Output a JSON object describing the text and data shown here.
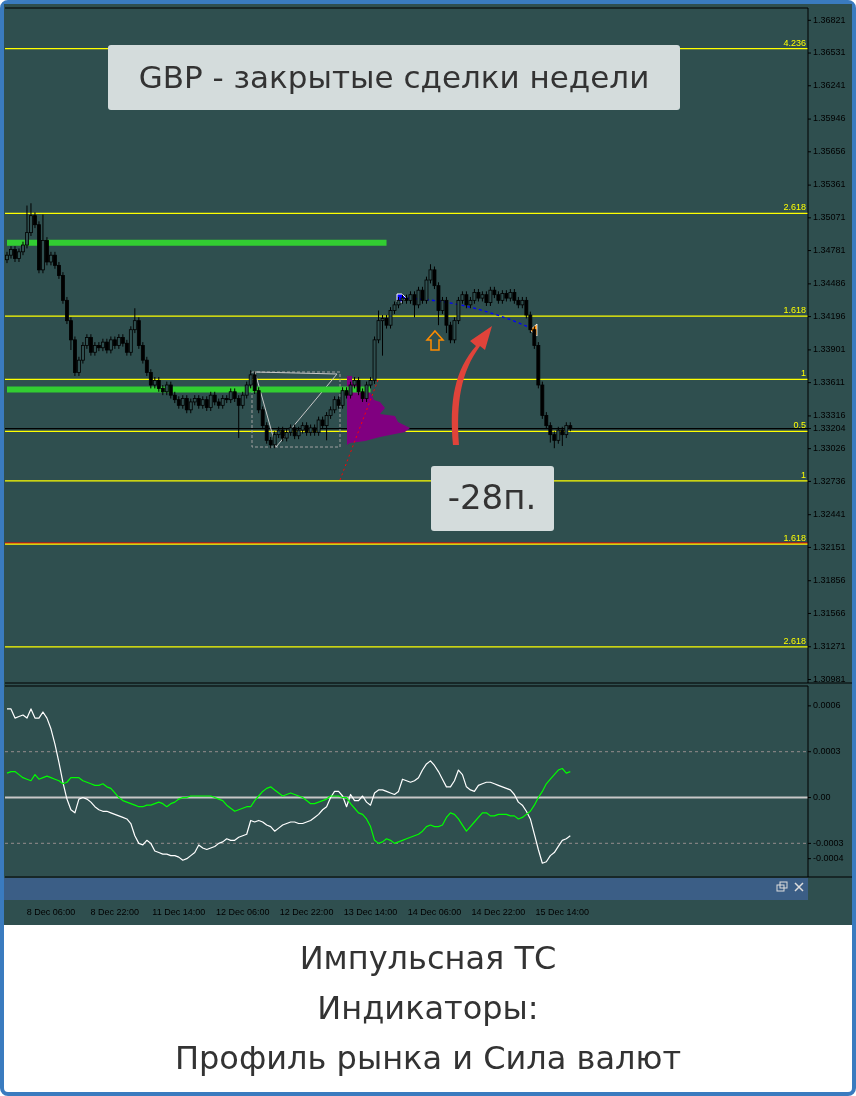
{
  "chart_data": [
    {
      "type": "candlestick",
      "title": "GBP - закрытые сделки недели",
      "annotations": [
        "-28п.",
        {
          "text": "4.236",
          "y": 1.3657
        },
        {
          "text": "2.618",
          "y": 1.3511
        },
        {
          "text": "1.618",
          "y": 1.342
        },
        {
          "text": "1",
          "y": 1.3364
        },
        {
          "text": "0.5",
          "y": 1.3318
        },
        {
          "text": "1",
          "y": 1.3274
        },
        {
          "text": "1.618",
          "y": 1.3218
        },
        {
          "text": "2.618",
          "y": 1.3127
        }
      ],
      "categories": [
        null,
        null,
        null,
        null,
        null,
        null,
        null,
        null,
        null,
        null,
        null,
        null,
        null,
        null,
        null,
        null,
        null,
        null,
        null,
        null,
        null,
        null,
        null,
        null,
        null,
        null,
        null,
        null,
        null,
        null,
        null,
        null,
        null,
        null,
        null,
        null,
        null,
        null,
        null,
        null,
        null,
        null,
        null,
        null,
        null,
        null,
        null,
        null,
        null,
        null,
        null,
        null,
        null,
        null,
        null,
        null,
        null,
        null,
        null,
        null,
        null,
        null,
        null,
        null,
        null,
        null,
        null,
        null,
        null,
        null,
        null,
        null,
        null,
        null,
        null,
        null,
        null,
        null,
        null,
        null,
        null,
        null,
        null,
        null,
        null,
        null,
        null,
        null,
        null,
        null,
        null,
        null,
        null,
        null,
        null,
        null,
        null,
        null,
        null,
        null,
        null,
        null,
        null,
        null,
        null,
        null,
        null,
        null,
        null,
        null,
        null,
        null,
        null,
        null,
        null,
        null,
        null,
        null,
        null,
        null,
        null,
        null,
        null,
        null,
        null,
        null,
        null,
        null,
        null,
        null,
        null,
        null,
        null,
        null,
        null,
        null,
        null,
        null,
        null,
        null,
        null,
        null,
        null,
        null,
        null,
        null,
        null,
        null,
        null,
        null,
        null,
        null,
        null,
        null,
        null,
        null,
        null,
        null,
        null,
        null,
        null,
        null,
        null,
        null,
        null,
        null,
        null,
        null,
        null,
        null,
        null,
        null,
        null,
        null,
        null,
        null,
        null,
        null,
        null,
        null,
        null,
        null,
        null,
        null,
        null,
        null,
        null,
        null,
        null,
        null,
        null,
        null,
        null,
        null,
        null,
        null,
        null,
        null,
        null,
        null,
        null
      ],
      "ylim": [
        1.3095,
        1.3693
      ],
      "yticks": [
        1.36821,
        1.36531,
        1.36241,
        1.35946,
        1.35656,
        1.35361,
        1.35071,
        1.34781,
        1.34486,
        1.34196,
        1.33901,
        1.33611,
        1.33316,
        1.33204,
        1.33026,
        1.32736,
        1.32441,
        1.32151,
        1.31856,
        1.31566,
        1.31271,
        1.30981
      ],
      "ref_lines": [
        {
          "axis": "y",
          "value": 1.3657,
          "color": "#ffff00"
        },
        {
          "axis": "y",
          "value": 1.3511,
          "color": "#ffff00"
        },
        {
          "axis": "y",
          "value": 1.342,
          "color": "#ffff00"
        },
        {
          "axis": "y",
          "value": 1.3364,
          "color": "#ffff00"
        },
        {
          "axis": "y",
          "value": 1.3318,
          "color": "#ffff00"
        },
        {
          "axis": "y",
          "value": 1.3274,
          "color": "#ffff00"
        },
        {
          "axis": "y",
          "value": 1.3219,
          "color": "#ff0000"
        },
        {
          "axis": "y",
          "value": 1.3218,
          "color": "#ffff00"
        },
        {
          "axis": "y",
          "value": 1.3127,
          "color": "#ffff00"
        },
        {
          "axis": "y",
          "value": 1.33204,
          "color": "#000000"
        }
      ],
      "ohlc": [
        [
          1.347,
          1.3477,
          1.3467,
          1.3474
        ],
        [
          1.3474,
          1.3482,
          1.3471,
          1.3479
        ],
        [
          1.3479,
          1.3482,
          1.3468,
          1.3471
        ],
        [
          1.3471,
          1.348,
          1.3468,
          1.3477
        ],
        [
          1.3477,
          1.3486,
          1.3474,
          1.3483
        ],
        [
          1.3483,
          1.3518,
          1.348,
          1.3494
        ],
        [
          1.3494,
          1.352,
          1.3491,
          1.3509
        ],
        [
          1.3509,
          1.3512,
          1.3498,
          1.3501
        ],
        [
          1.3501,
          1.3504,
          1.3458,
          1.3461
        ],
        [
          1.3461,
          1.351,
          1.3458,
          1.3487
        ],
        [
          1.3487,
          1.349,
          1.3465,
          1.3468
        ],
        [
          1.3468,
          1.3477,
          1.3465,
          1.3474
        ],
        [
          1.3474,
          1.3477,
          1.3462,
          1.3465
        ],
        [
          1.3465,
          1.3468,
          1.3453,
          1.3456
        ],
        [
          1.3456,
          1.3459,
          1.3431,
          1.3434
        ],
        [
          1.3434,
          1.3437,
          1.3413,
          1.3416
        ],
        [
          1.3416,
          1.3419,
          1.339,
          1.3399
        ],
        [
          1.3399,
          1.3402,
          1.3367,
          1.337
        ],
        [
          1.337,
          1.3384,
          1.3367,
          1.3381
        ],
        [
          1.3381,
          1.3397,
          1.3378,
          1.3394
        ],
        [
          1.3394,
          1.3404,
          1.3391,
          1.3401
        ],
        [
          1.3401,
          1.3404,
          1.3385,
          1.3388
        ],
        [
          1.3388,
          1.3397,
          1.3385,
          1.3394
        ],
        [
          1.3394,
          1.3397,
          1.3389,
          1.3392
        ],
        [
          1.3392,
          1.34,
          1.3389,
          1.3397
        ],
        [
          1.3397,
          1.34,
          1.3387,
          1.339
        ],
        [
          1.339,
          1.3402,
          1.3387,
          1.3399
        ],
        [
          1.3399,
          1.3402,
          1.3391,
          1.3394
        ],
        [
          1.3394,
          1.3404,
          1.3391,
          1.3401
        ],
        [
          1.3401,
          1.3404,
          1.3393,
          1.3396
        ],
        [
          1.3396,
          1.3399,
          1.3385,
          1.3388
        ],
        [
          1.3388,
          1.3411,
          1.3385,
          1.3408
        ],
        [
          1.3408,
          1.3427,
          1.3405,
          1.3416
        ],
        [
          1.3416,
          1.3419,
          1.3391,
          1.3394
        ],
        [
          1.3394,
          1.3397,
          1.3378,
          1.3381
        ],
        [
          1.3381,
          1.3384,
          1.3367,
          1.337
        ],
        [
          1.337,
          1.3373,
          1.3356,
          1.3359
        ],
        [
          1.3359,
          1.3366,
          1.3356,
          1.3363
        ],
        [
          1.3363,
          1.3366,
          1.3353,
          1.3356
        ],
        [
          1.3356,
          1.3359,
          1.335,
          1.3353
        ],
        [
          1.3353,
          1.3362,
          1.335,
          1.3359
        ],
        [
          1.3359,
          1.3362,
          1.3347,
          1.335
        ],
        [
          1.335,
          1.3353,
          1.3343,
          1.3346
        ],
        [
          1.3346,
          1.3349,
          1.3338,
          1.3341
        ],
        [
          1.3341,
          1.335,
          1.3338,
          1.3347
        ],
        [
          1.3347,
          1.335,
          1.3334,
          1.3337
        ],
        [
          1.3337,
          1.3347,
          1.3334,
          1.3344
        ],
        [
          1.3344,
          1.335,
          1.3341,
          1.3347
        ],
        [
          1.3347,
          1.335,
          1.3338,
          1.3341
        ],
        [
          1.3341,
          1.3349,
          1.3338,
          1.3346
        ],
        [
          1.3346,
          1.3349,
          1.3336,
          1.3339
        ],
        [
          1.3339,
          1.3353,
          1.3336,
          1.335
        ],
        [
          1.335,
          1.3353,
          1.3341,
          1.3344
        ],
        [
          1.3344,
          1.3347,
          1.3338,
          1.3341
        ],
        [
          1.3341,
          1.335,
          1.3338,
          1.3347
        ],
        [
          1.3347,
          1.335,
          1.3343,
          1.3346
        ],
        [
          1.3346,
          1.3356,
          1.3343,
          1.3353
        ],
        [
          1.3353,
          1.3356,
          1.3344,
          1.3347
        ],
        [
          1.3347,
          1.335,
          1.3312,
          1.3341
        ],
        [
          1.3341,
          1.3353,
          1.3338,
          1.335
        ],
        [
          1.335,
          1.3362,
          1.3347,
          1.3359
        ],
        [
          1.3359,
          1.3372,
          1.3356,
          1.3368
        ],
        [
          1.3368,
          1.3371,
          1.3351,
          1.3354
        ],
        [
          1.3354,
          1.3357,
          1.3334,
          1.3337
        ],
        [
          1.3337,
          1.334,
          1.332,
          1.3323
        ],
        [
          1.3323,
          1.3326,
          1.3307,
          1.331
        ],
        [
          1.331,
          1.3313,
          1.3303,
          1.3306
        ],
        [
          1.3306,
          1.3318,
          1.3303,
          1.3315
        ],
        [
          1.3315,
          1.3322,
          1.3312,
          1.3319
        ],
        [
          1.3319,
          1.3322,
          1.3309,
          1.3312
        ],
        [
          1.3312,
          1.332,
          1.3309,
          1.3317
        ],
        [
          1.3317,
          1.3324,
          1.3314,
          1.3321
        ],
        [
          1.3321,
          1.3324,
          1.3311,
          1.3314
        ],
        [
          1.3314,
          1.3322,
          1.3311,
          1.3319
        ],
        [
          1.3319,
          1.3326,
          1.3316,
          1.3323
        ],
        [
          1.3323,
          1.3326,
          1.3314,
          1.3317
        ],
        [
          1.3317,
          1.3324,
          1.3314,
          1.3321
        ],
        [
          1.3321,
          1.3324,
          1.3314,
          1.3317
        ],
        [
          1.3317,
          1.3331,
          1.3314,
          1.3328
        ],
        [
          1.3328,
          1.3331,
          1.332,
          1.3323
        ],
        [
          1.3323,
          1.3335,
          1.331,
          1.3332
        ],
        [
          1.3332,
          1.334,
          1.3329,
          1.3337
        ],
        [
          1.3337,
          1.3349,
          1.3334,
          1.3346
        ],
        [
          1.3346,
          1.3349,
          1.3338,
          1.3341
        ],
        [
          1.3341,
          1.3357,
          1.3338,
          1.3354
        ],
        [
          1.3354,
          1.3357,
          1.3347,
          1.335
        ],
        [
          1.335,
          1.3362,
          1.3347,
          1.3359
        ],
        [
          1.3359,
          1.3366,
          1.3356,
          1.3363
        ],
        [
          1.3363,
          1.3366,
          1.335,
          1.3353
        ],
        [
          1.3353,
          1.3356,
          1.3344,
          1.3347
        ],
        [
          1.3347,
          1.3362,
          1.3344,
          1.3359
        ],
        [
          1.3359,
          1.3366,
          1.3356,
          1.3363
        ],
        [
          1.3363,
          1.3402,
          1.336,
          1.3399
        ],
        [
          1.3399,
          1.3425,
          1.3396,
          1.3416
        ],
        [
          1.3416,
          1.3421,
          1.3385,
          1.3418
        ],
        [
          1.3418,
          1.3421,
          1.3409,
          1.3412
        ],
        [
          1.3412,
          1.3428,
          1.3409,
          1.3425
        ],
        [
          1.3425,
          1.3433,
          1.3422,
          1.343
        ],
        [
          1.343,
          1.3437,
          1.3427,
          1.3434
        ],
        [
          1.3434,
          1.3439,
          1.3431,
          1.3436
        ],
        [
          1.3436,
          1.3439,
          1.3431,
          1.3434
        ],
        [
          1.3434,
          1.3442,
          1.3431,
          1.3439
        ],
        [
          1.3439,
          1.3442,
          1.3419,
          1.343
        ],
        [
          1.343,
          1.3446,
          1.3427,
          1.3443
        ],
        [
          1.3443,
          1.3446,
          1.3431,
          1.3434
        ],
        [
          1.3434,
          1.3455,
          1.3431,
          1.3452
        ],
        [
          1.3452,
          1.3466,
          1.3449,
          1.3461
        ],
        [
          1.3461,
          1.3464,
          1.3444,
          1.3447
        ],
        [
          1.3447,
          1.345,
          1.3412,
          1.3425
        ],
        [
          1.3425,
          1.3437,
          1.3422,
          1.3434
        ],
        [
          1.3434,
          1.3437,
          1.3405,
          1.3412
        ],
        [
          1.3412,
          1.3415,
          1.3396,
          1.3399
        ],
        [
          1.3399,
          1.3419,
          1.3396,
          1.3416
        ],
        [
          1.3416,
          1.3437,
          1.3413,
          1.3434
        ],
        [
          1.3434,
          1.3442,
          1.3431,
          1.3439
        ],
        [
          1.3439,
          1.3442,
          1.3427,
          1.343
        ],
        [
          1.343,
          1.3437,
          1.3427,
          1.3434
        ],
        [
          1.3434,
          1.3444,
          1.3431,
          1.3441
        ],
        [
          1.3441,
          1.3444,
          1.3433,
          1.3436
        ],
        [
          1.3436,
          1.3442,
          1.3433,
          1.3439
        ],
        [
          1.3439,
          1.3442,
          1.3429,
          1.3432
        ],
        [
          1.3432,
          1.3446,
          1.3429,
          1.3443
        ],
        [
          1.3443,
          1.3446,
          1.3436,
          1.3439
        ],
        [
          1.3439,
          1.3442,
          1.3431,
          1.3434
        ],
        [
          1.3434,
          1.3443,
          1.3431,
          1.344
        ],
        [
          1.344,
          1.3443,
          1.3433,
          1.3436
        ],
        [
          1.3436,
          1.3444,
          1.3433,
          1.3441
        ],
        [
          1.3441,
          1.3444,
          1.3431,
          1.3434
        ],
        [
          1.3434,
          1.3437,
          1.3427,
          1.343
        ],
        [
          1.343,
          1.3437,
          1.3427,
          1.3434
        ],
        [
          1.3434,
          1.3437,
          1.3418,
          1.3421
        ],
        [
          1.3421,
          1.3424,
          1.3405,
          1.3408
        ],
        [
          1.3408,
          1.3411,
          1.3391,
          1.3394
        ],
        [
          1.3394,
          1.3397,
          1.3356,
          1.3359
        ],
        [
          1.3359,
          1.3362,
          1.3329,
          1.3332
        ],
        [
          1.3332,
          1.3335,
          1.332,
          1.3323
        ],
        [
          1.3323,
          1.3326,
          1.3308,
          1.3315
        ],
        [
          1.3315,
          1.3318,
          1.3303,
          1.331
        ],
        [
          1.331,
          1.3322,
          1.3307,
          1.3319
        ],
        [
          1.3319,
          1.3322,
          1.3305,
          1.3315
        ],
        [
          1.3315,
          1.3326,
          1.3312,
          1.3323
        ],
        [
          1.3323,
          1.3326,
          1.3318,
          1.3321
        ],
        null,
        null,
        null,
        null,
        null,
        null,
        null,
        null,
        null,
        null,
        null,
        null,
        null,
        null,
        null,
        null,
        null,
        null,
        null,
        null,
        null,
        null,
        null,
        null,
        null,
        null,
        null,
        null,
        null,
        null,
        null,
        null,
        null,
        null,
        null,
        null,
        null,
        null,
        null,
        null,
        null,
        null,
        null,
        null,
        null,
        null,
        null,
        null,
        null,
        null,
        null,
        null,
        null,
        null,
        null,
        null,
        null,
        null,
        null
      ],
      "series": [
        {
          "type": "line",
          "color": "#32cd32",
          "values": [
            1.3485,
            1.3485,
            1.3485,
            1.3485,
            1.3485,
            1.3485,
            1.3485,
            1.3485,
            1.3485,
            null,
            1.3485,
            1.3485,
            1.3485,
            1.3485,
            1.3485,
            1.3485,
            1.3485,
            1.3485,
            1.3485,
            1.3485,
            1.3485,
            1.3485,
            1.3485,
            1.3485,
            1.3485,
            1.3485,
            1.3485,
            1.3485,
            1.3485,
            1.3485,
            1.3485,
            1.3485,
            1.3485,
            1.3485,
            1.3485,
            1.3485,
            1.3485,
            1.3485,
            1.3485,
            1.3485,
            1.3485,
            1.3485,
            1.3485,
            1.3485,
            1.3485,
            1.3485,
            1.3485,
            1.3485,
            1.3485,
            1.3485,
            1.3485,
            1.3485,
            1.3485,
            1.3485,
            1.3485,
            1.3485,
            1.3485,
            1.3485,
            1.3485,
            1.3485,
            1.3485,
            1.3485,
            1.3485,
            1.3485,
            1.3485,
            1.3485,
            1.3485,
            1.3485,
            1.3485,
            1.3485,
            1.3485,
            1.3485,
            1.3485,
            1.3485,
            1.3485,
            1.3485,
            1.3485,
            1.3485,
            1.3485,
            1.3485,
            1.3485,
            1.3485,
            1.3485,
            1.3485,
            1.3485,
            1.3485,
            1.3485,
            1.3485,
            1.3485,
            1.3485,
            1.3485,
            1.3485,
            1.3485,
            1.3485,
            1.3485,
            1.3485,
            null,
            null,
            null,
            null,
            null,
            null,
            null,
            null,
            null,
            null,
            null,
            null,
            null,
            null,
            null,
            null,
            null,
            null,
            null,
            null,
            null,
            null,
            null,
            null,
            null,
            null,
            null,
            null,
            null,
            null,
            null,
            null,
            null,
            null,
            null,
            null,
            null,
            null,
            null,
            null,
            null,
            null,
            null,
            null,
            null,
            null,
            null,
            null,
            null,
            null,
            null,
            null,
            null,
            null,
            null,
            null,
            null,
            null,
            null,
            null,
            null,
            null,
            null,
            null,
            null,
            null,
            null,
            null,
            null,
            null,
            null,
            null,
            null,
            null,
            null,
            null,
            null,
            null,
            null,
            null,
            null,
            null,
            null,
            null,
            null,
            null,
            null,
            null,
            null,
            null,
            null,
            null,
            null,
            null,
            null,
            null,
            null,
            null,
            null,
            null,
            null,
            null,
            null,
            null,
            null
          ]
        },
        {
          "type": "line",
          "color": "#32cd32",
          "values": [
            1.3355,
            1.3355,
            1.3355,
            1.3355,
            1.3355,
            1.3355,
            1.3355,
            1.3355,
            1.3355,
            1.3355,
            1.3355,
            1.3355,
            1.3355,
            1.3355,
            1.3355,
            1.3355,
            1.3355,
            1.3355,
            1.3355,
            1.3355,
            1.3355,
            1.3355,
            1.3355,
            1.3355,
            1.3355,
            1.3355,
            1.3355,
            1.3355,
            1.3355,
            1.3355,
            1.3355,
            1.3355,
            1.3355,
            1.3355,
            1.3355,
            1.3355,
            1.3355,
            1.3355,
            1.3355,
            1.3355,
            1.3355,
            1.3355,
            1.3355,
            1.3355,
            1.3355,
            1.3355,
            1.3355,
            1.3355,
            1.3355,
            1.3355,
            1.3355,
            1.3355,
            1.3355,
            1.3355,
            1.3355,
            1.3355,
            1.3355,
            1.3355,
            1.3355,
            1.3355,
            1.3355,
            1.3355,
            1.3355,
            1.3355,
            1.3355,
            1.3355,
            1.3355,
            1.3355,
            1.3355,
            1.3355,
            1.3355,
            1.3355,
            1.3355,
            1.3355,
            1.3355,
            1.3355,
            1.3355,
            1.3355,
            1.3355,
            1.3355,
            1.3355,
            1.3355,
            1.3355,
            1.3355,
            1.3355,
            1.3355,
            1.3355,
            1.3355,
            1.3355,
            1.3355,
            1.3355,
            1.3355,
            null,
            null,
            null,
            null,
            null,
            null,
            null,
            null,
            null,
            null,
            null,
            null,
            null,
            null,
            null,
            null,
            null,
            null,
            null,
            null,
            null,
            null,
            null,
            null,
            null,
            null,
            null,
            null,
            null,
            null,
            null,
            null,
            null,
            null,
            null,
            null,
            null,
            null,
            null,
            null,
            null,
            null,
            null,
            null,
            null,
            null,
            null,
            null,
            null,
            null,
            null,
            null,
            null,
            null,
            null,
            null,
            null,
            null,
            null,
            null,
            null,
            null,
            null,
            null,
            null,
            null,
            null,
            null,
            null,
            null,
            null,
            null,
            null,
            null,
            null,
            null,
            null,
            null,
            null,
            null,
            null,
            null,
            null,
            null,
            null,
            null,
            null,
            null,
            null,
            null,
            null,
            null,
            null,
            null,
            null,
            null,
            null,
            null,
            null,
            null,
            null,
            null,
            null,
            null,
            null,
            null,
            null,
            null,
            null
          ]
        }
      ]
    },
    {
      "type": "line",
      "annotations": [
        "Импульсная ТС",
        "Индикаторы:",
        "Профиль рынка и Сила валют"
      ],
      "categories": [
        null,
        null,
        null,
        null,
        null,
        null,
        null,
        null,
        null,
        null,
        null,
        "8 Dec 06:00",
        null,
        null,
        null,
        null,
        null,
        null,
        null,
        null,
        null,
        null,
        null,
        null,
        null,
        null,
        null,
        "8 Dec 22:00",
        null,
        null,
        null,
        null,
        null,
        null,
        null,
        null,
        null,
        null,
        null,
        null,
        null,
        null,
        null,
        "11 Dec 14:00",
        null,
        null,
        null,
        null,
        null,
        null,
        null,
        null,
        null,
        null,
        null,
        null,
        null,
        null,
        null,
        "12 Dec 06:00",
        null,
        null,
        null,
        null,
        null,
        null,
        null,
        null,
        null,
        null,
        null,
        null,
        null,
        null,
        null,
        "12 Dec 22:00",
        null,
        null,
        null,
        null,
        null,
        null,
        null,
        null,
        null,
        null,
        null,
        null,
        null,
        null,
        null,
        "13 Dec 14:00",
        null,
        null,
        null,
        null,
        null,
        null,
        null,
        null,
        null,
        null,
        null,
        null,
        null,
        null,
        null,
        "14 Dec 06:00",
        null,
        null,
        null,
        null,
        null,
        null,
        null,
        null,
        null,
        null,
        null,
        null,
        null,
        null,
        null,
        "14 Dec 22:00",
        null,
        null,
        null,
        null,
        null,
        null,
        null,
        null,
        null,
        null,
        null,
        null,
        null,
        null,
        null,
        "15 Dec 14:00",
        null,
        null,
        null,
        null,
        null,
        null,
        null,
        null,
        null,
        null,
        null,
        null,
        null,
        null,
        null,
        null,
        null,
        null,
        null,
        null,
        null,
        null,
        null,
        null,
        null,
        null,
        null,
        null,
        null,
        null,
        null,
        null,
        null,
        null,
        null,
        null,
        null,
        null,
        null,
        null,
        null,
        null,
        null,
        null,
        null,
        null,
        null,
        null,
        null,
        null,
        null,
        null,
        null,
        null,
        null,
        null,
        null,
        null,
        null,
        null,
        null
      ],
      "ylim": [
        -0.00052,
        0.00073
      ],
      "yticks": [
        0.0006,
        0.0003,
        {
          "value": 0,
          "label": "0.00"
        },
        -0.0003,
        -0.0004
      ],
      "ref_lines": [
        {
          "axis": "y",
          "value": 0.0003,
          "color": "#808080",
          "line_style": "dashed"
        },
        {
          "axis": "y",
          "value": -0.0003,
          "color": "#808080",
          "line_style": "dashed"
        },
        {
          "axis": "y",
          "value": 0,
          "color": "#c8c8c8",
          "line_style": "solid"
        }
      ],
      "series": [
        {
          "color": "#ffffff",
          "values": [
            0.00058,
            0.00058,
            0.00052,
            0.00053,
            0.00054,
            0.00052,
            0.00058,
            0.00052,
            0.00052,
            0.00056,
            0.00052,
            0.00045,
            0.00035,
            0.00023,
            0.0001,
            -1e-05,
            -8e-05,
            -0.0001,
            -1e-05,
            0,
            -1e-05,
            -3e-05,
            -6e-05,
            -8e-05,
            -9e-05,
            -9e-05,
            -0.0001,
            -0.00011,
            -0.00012,
            -0.00013,
            -0.00014,
            -0.00017,
            -0.00025,
            -0.0003,
            -0.00031,
            -0.00028,
            -0.0003,
            -0.00035,
            -0.00036,
            -0.00037,
            -0.00037,
            -0.00038,
            -0.00038,
            -0.00039,
            -0.00041,
            -0.0004,
            -0.00038,
            -0.00036,
            -0.00031,
            -0.00033,
            -0.00034,
            -0.00033,
            -0.00032,
            -0.0003,
            -0.00029,
            -0.00027,
            -0.00028,
            -0.00028,
            -0.00026,
            -0.00025,
            -0.00024,
            -0.00015,
            -0.00016,
            -0.00015,
            -0.00016,
            -0.00018,
            -0.00019,
            -0.00022,
            -0.0002,
            -0.00018,
            -0.00017,
            -0.00016,
            -0.00016,
            -0.00017,
            -0.00017,
            -0.00016,
            -0.00015,
            -0.00013,
            -0.00011,
            -8e-05,
            -6e-05,
            0,
            4e-05,
            4e-05,
            1e-05,
            -6e-05,
            2e-05,
            -2e-05,
            -2e-05,
            1e-05,
            -3e-05,
            -5e-05,
            3e-05,
            5e-05,
            5e-05,
            4e-05,
            3e-05,
            2e-05,
            4e-05,
            0.00012,
            0.00011,
            0.0001,
            0.00011,
            0.00013,
            0.00018,
            0.00022,
            0.00024,
            0.00021,
            0.00017,
            0.00012,
            7e-05,
            7e-05,
            0.00011,
            0.00018,
            0.00015,
            7e-05,
            5e-05,
            4e-05,
            8e-05,
            9e-05,
            0.0001,
            0.0001,
            9e-05,
            8e-05,
            7e-05,
            6e-05,
            5e-05,
            2e-05,
            -3e-05,
            -5e-05,
            -9e-05,
            -0.00014,
            -0.00024,
            -0.00034,
            -0.00043,
            -0.00042,
            -0.00038,
            -0.00036,
            -0.00032,
            -0.00028,
            -0.00027,
            -0.00025,
            null,
            null,
            null,
            null,
            null,
            null,
            null,
            null,
            null,
            null,
            null,
            null,
            null,
            null,
            null,
            null,
            null,
            null,
            null,
            null,
            null,
            null,
            null,
            null,
            null,
            null,
            null,
            null,
            null,
            null,
            null,
            null,
            null,
            null,
            null,
            null,
            null,
            null,
            null,
            null,
            null,
            null,
            null,
            null,
            null,
            null,
            null,
            null,
            null,
            null,
            null,
            null,
            null,
            null,
            null,
            null,
            null,
            null,
            null
          ]
        },
        {
          "color": "#00ff00",
          "values": [
            0.00016,
            0.00017,
            0.00017,
            0.00015,
            0.00013,
            0.00012,
            0.00011,
            0.00015,
            0.00012,
            0.00013,
            0.00014,
            0.00013,
            0.00012,
            0.00011,
            9e-05,
            0.0001,
            0.00013,
            0.00013,
            0.00013,
            0.00011,
            0.0001,
            9e-05,
            8e-05,
            8e-05,
            9e-05,
            7e-05,
            6e-05,
            3e-05,
            0,
            -2e-05,
            -3e-05,
            -4e-05,
            -5e-05,
            -6e-05,
            -6e-05,
            -5e-05,
            -5e-05,
            -4e-05,
            -3e-05,
            -4e-05,
            -6e-05,
            -4e-05,
            -3e-05,
            -1e-05,
            0,
            0,
            1e-05,
            1e-05,
            1e-05,
            1e-05,
            1e-05,
            1e-05,
            0,
            -1e-05,
            -2e-05,
            -5e-05,
            -7e-05,
            -9e-05,
            -8e-05,
            -7e-05,
            -6e-05,
            -6e-05,
            -2e-05,
            1e-05,
            4e-05,
            6e-05,
            7e-05,
            5e-05,
            3e-05,
            1e-05,
            2e-05,
            3e-05,
            2e-05,
            1e-05,
            0,
            -2e-05,
            -4e-05,
            -4e-05,
            -3e-05,
            -2e-05,
            -1e-05,
            1e-05,
            1e-05,
            1e-05,
            0,
            0,
            -4e-05,
            -7e-05,
            -0.0001,
            -0.00011,
            -0.00014,
            -0.00019,
            -0.00028,
            -0.0003,
            -0.00029,
            -0.00027,
            -0.00028,
            -0.0003,
            -0.00029,
            -0.00028,
            -0.00027,
            -0.00026,
            -0.00025,
            -0.00024,
            -0.00022,
            -0.00019,
            -0.00018,
            -0.00019,
            -0.00019,
            -0.00018,
            -0.00013,
            -0.0001,
            -0.00011,
            -0.00014,
            -0.00018,
            -0.00022,
            -0.00019,
            -0.00016,
            -0.00013,
            -0.0001,
            -0.0001,
            -0.00012,
            -0.00012,
            -0.00011,
            -0.00011,
            -0.00011,
            -0.00012,
            -0.00012,
            -0.00014,
            -0.00013,
            -0.00011,
            -9e-05,
            -5e-05,
            0,
            4e-05,
            9e-05,
            0.00012,
            0.00015,
            0.00018,
            0.00019,
            0.00016,
            0.00017,
            null,
            null,
            null,
            null,
            null,
            null,
            null,
            null,
            null,
            null,
            null,
            null,
            null,
            null,
            null,
            null,
            null,
            null,
            null,
            null,
            null,
            null,
            null,
            null,
            null,
            null,
            null,
            null,
            null,
            null,
            null,
            null,
            null,
            null,
            null,
            null,
            null,
            null,
            null,
            null,
            null,
            null,
            null,
            null,
            null,
            null,
            null,
            null,
            null,
            null,
            null,
            null,
            null,
            null,
            null,
            null,
            null,
            null,
            null
          ]
        }
      ]
    }
  ]
}
